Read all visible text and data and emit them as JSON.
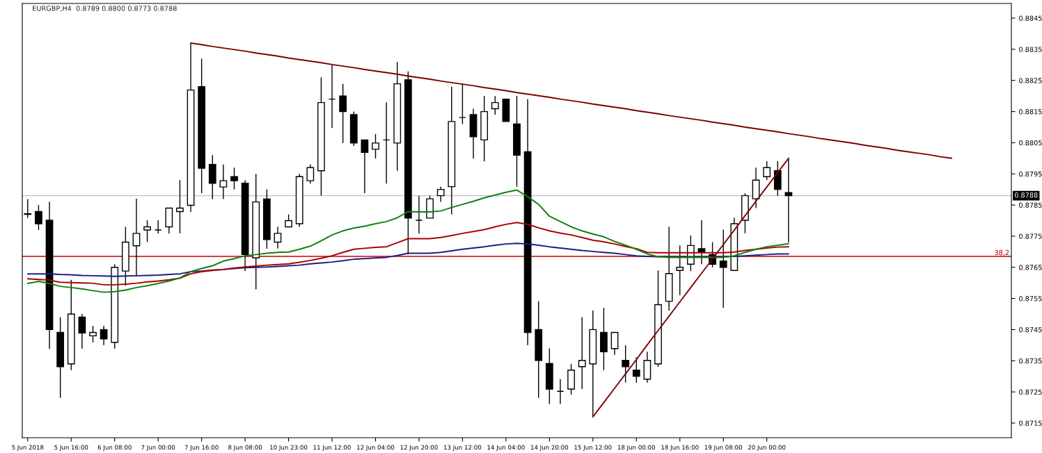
{
  "chart_data": {
    "type": "candlestick",
    "title": "EURGBP,H4  0.8789 0.8800 0.8773 0.8788",
    "categories": [
      "5 Jun 2018",
      null,
      null,
      null,
      "5 Jun 16:00",
      null,
      null,
      null,
      "6 Jun 08:00",
      null,
      null,
      null,
      "7 Jun 00:00",
      null,
      null,
      null,
      "7 Jun 16:00",
      null,
      null,
      null,
      "8 Jun 08:00",
      null,
      null,
      null,
      "10 Jun 23:00",
      null,
      null,
      null,
      "11 Jun 12:00",
      null,
      null,
      null,
      "12 Jun 04:00",
      null,
      null,
      null,
      "12 Jun 20:00",
      null,
      null,
      null,
      "13 Jun 12:00",
      null,
      null,
      null,
      "14 Jun 04:00",
      null,
      null,
      null,
      "14 Jun 20:00",
      null,
      null,
      null,
      "15 Jun 12:00",
      null,
      null,
      null,
      "18 Jun 00:00",
      null,
      null,
      null,
      "18 Jun 16:00",
      null,
      null,
      null,
      "19 Jun 08:00",
      null,
      null,
      null,
      "20 Jun 00:00",
      null,
      null,
      null,
      null,
      null,
      null,
      null,
      null,
      null,
      null,
      null,
      null,
      null,
      null,
      null,
      null,
      null,
      null,
      null,
      null,
      null,
      null
    ],
    "ohlc": [
      [
        0.87822,
        0.87869,
        0.87809,
        0.8782
      ],
      [
        0.87829,
        0.8785,
        0.8777,
        0.8779
      ],
      [
        0.87801,
        0.8786,
        0.87388,
        0.8745
      ],
      [
        0.87441,
        0.8749,
        0.87231,
        0.87331
      ],
      [
        0.8734,
        0.8761,
        0.8732,
        0.875
      ],
      [
        0.8749,
        0.875,
        0.87389,
        0.87439
      ],
      [
        0.8743,
        0.87462,
        0.87409,
        0.87441
      ],
      [
        0.8745,
        0.87462,
        0.874,
        0.8742
      ],
      [
        0.87409,
        0.8766,
        0.87389,
        0.8765
      ],
      [
        0.87638,
        0.8778,
        0.87591,
        0.87731
      ],
      [
        0.87719,
        0.8787,
        0.87621,
        0.87759
      ],
      [
        0.8777,
        0.87801,
        0.87731,
        0.8778
      ],
      [
        0.8777,
        0.87801,
        0.87759,
        0.8777
      ],
      [
        0.8778,
        0.8784,
        0.87759,
        0.8784
      ],
      [
        0.87829,
        0.8793,
        0.87759,
        0.8784
      ],
      [
        0.87849,
        0.8837,
        0.87828,
        0.88219
      ],
      [
        0.8823,
        0.8832,
        0.87888,
        0.87968
      ],
      [
        0.8798,
        0.8801,
        0.87869,
        0.8792
      ],
      [
        0.87908,
        0.8798,
        0.87869,
        0.87928
      ],
      [
        0.87941,
        0.8797,
        0.879,
        0.87928
      ],
      [
        0.8792,
        0.8793,
        0.87638,
        0.87691
      ],
      [
        0.8768,
        0.8795,
        0.87579,
        0.8786
      ],
      [
        0.87869,
        0.879,
        0.8771,
        0.87739
      ],
      [
        0.87731,
        0.8778,
        0.8771,
        0.87759
      ],
      [
        0.8778,
        0.8782,
        0.8778,
        0.878
      ],
      [
        0.8779,
        0.8795,
        0.8778,
        0.87941
      ],
      [
        0.87928,
        0.8798,
        0.87919,
        0.8797
      ],
      [
        0.8796,
        0.8826,
        0.8788,
        0.88179
      ],
      [
        0.8819,
        0.883,
        0.88097,
        0.8819
      ],
      [
        0.882,
        0.88239,
        0.88049,
        0.8815
      ],
      [
        0.8814,
        0.8815,
        0.8804,
        0.88049
      ],
      [
        0.88059,
        0.88059,
        0.87888,
        0.88019
      ],
      [
        0.88029,
        0.88078,
        0.87999,
        0.88049
      ],
      [
        0.88059,
        0.8818,
        0.87919,
        0.88059
      ],
      [
        0.88049,
        0.88309,
        0.8796,
        0.88239
      ],
      [
        0.88252,
        0.88279,
        0.87691,
        0.87808
      ],
      [
        0.87801,
        0.8788,
        0.87759,
        0.87801
      ],
      [
        0.87808,
        0.8788,
        0.87808,
        0.8787
      ],
      [
        0.8788,
        0.87909,
        0.8786,
        0.879
      ],
      [
        0.87909,
        0.8823,
        0.8782,
        0.88118
      ],
      [
        0.88131,
        0.88239,
        0.8811,
        0.88131
      ],
      [
        0.8814,
        0.88159,
        0.87999,
        0.88069
      ],
      [
        0.88059,
        0.882,
        0.8799,
        0.8815
      ],
      [
        0.88159,
        0.882,
        0.8814,
        0.88179
      ],
      [
        0.8819,
        0.8819,
        0.88118,
        0.88118
      ],
      [
        0.8811,
        0.882,
        0.87909,
        0.8801
      ],
      [
        0.88021,
        0.8819,
        0.874,
        0.87441
      ],
      [
        0.8745,
        0.87541,
        0.87231,
        0.87351
      ],
      [
        0.87341,
        0.8739,
        0.87211,
        0.87259
      ],
      [
        0.87252,
        0.87291,
        0.87211,
        0.87252
      ],
      [
        0.87259,
        0.8734,
        0.87241,
        0.8732
      ],
      [
        0.87331,
        0.8749,
        0.87259,
        0.87351
      ],
      [
        0.8734,
        0.87511,
        0.8717,
        0.8745
      ],
      [
        0.87441,
        0.8752,
        0.8732,
        0.87379
      ],
      [
        0.87389,
        0.87441,
        0.87369,
        0.87441
      ],
      [
        0.87351,
        0.874,
        0.8728,
        0.87331
      ],
      [
        0.8732,
        0.87361,
        0.8728,
        0.873
      ],
      [
        0.87291,
        0.87379,
        0.8728,
        0.87351
      ],
      [
        0.8734,
        0.8764,
        0.87331,
        0.8753
      ],
      [
        0.87541,
        0.8778,
        0.87511,
        0.8763
      ],
      [
        0.8764,
        0.8772,
        0.87561,
        0.8765
      ],
      [
        0.8766,
        0.87752,
        0.87638,
        0.8772
      ],
      [
        0.8771,
        0.87801,
        0.8766,
        0.87699
      ],
      [
        0.87691,
        0.87731,
        0.8765,
        0.8766
      ],
      [
        0.8767,
        0.87771,
        0.8752,
        0.8765
      ],
      [
        0.8764,
        0.87809,
        0.8764,
        0.8779
      ],
      [
        0.87801,
        0.87888,
        0.87759,
        0.8788
      ],
      [
        0.8787,
        0.8797,
        0.8784,
        0.8793
      ],
      [
        0.87941,
        0.87991,
        0.8793,
        0.8797
      ],
      [
        0.8796,
        0.87991,
        0.8788,
        0.879
      ],
      [
        0.8789,
        0.88,
        0.8773,
        0.8788
      ],
      null,
      null,
      null,
      null,
      null,
      null,
      null,
      null,
      null,
      null,
      null,
      null,
      null,
      null,
      null,
      null,
      null,
      null,
      null,
      null
    ],
    "series": [
      {
        "type": "line",
        "color": "#1c1c80",
        "values": [
          0.87629,
          0.87629,
          0.87629,
          0.87627,
          0.87626,
          0.87624,
          0.87623,
          0.87622,
          0.87621,
          0.87622,
          0.87623,
          0.87624,
          0.87625,
          0.87627,
          0.87629,
          0.87636,
          0.87638,
          0.87641,
          0.87643,
          0.87646,
          0.87649,
          0.8765,
          0.87651,
          0.87653,
          0.87655,
          0.87657,
          0.87661,
          0.87664,
          0.87667,
          0.87671,
          0.87676,
          0.87678,
          0.8768,
          0.87682,
          0.87688,
          0.87695,
          0.87695,
          0.87695,
          0.87698,
          0.87703,
          0.87708,
          0.87712,
          0.87716,
          0.87721,
          0.87725,
          0.87727,
          0.87725,
          0.87721,
          0.87716,
          0.87712,
          0.87708,
          0.87704,
          0.87701,
          0.87698,
          0.87695,
          0.87691,
          0.87687,
          0.87685,
          0.87684,
          0.87684,
          0.87684,
          0.87684,
          0.87684,
          0.87684,
          0.87684,
          0.87685,
          0.87687,
          0.87689,
          0.87691,
          0.87693,
          0.87693,
          null,
          null,
          null,
          null,
          null,
          null,
          null,
          null,
          null,
          null,
          null,
          null,
          null,
          null,
          null,
          null,
          null,
          null,
          null,
          null
        ]
      },
      {
        "type": "line",
        "color": "#a80000",
        "values": [
          0.87613,
          0.87611,
          0.87609,
          0.87602,
          0.87601,
          0.876,
          0.87599,
          0.87594,
          0.87594,
          0.87596,
          0.87599,
          0.87603,
          0.87606,
          0.8761,
          0.87615,
          0.87629,
          0.87636,
          0.8764,
          0.87643,
          0.87648,
          0.87651,
          0.87654,
          0.87657,
          0.87659,
          0.87661,
          0.87666,
          0.87672,
          0.87679,
          0.87687,
          0.87698,
          0.87708,
          0.87711,
          0.87714,
          0.87716,
          0.87729,
          0.87742,
          0.87742,
          0.87742,
          0.87746,
          0.87752,
          0.87759,
          0.87765,
          0.87771,
          0.8778,
          0.87788,
          0.87794,
          0.87788,
          0.87777,
          0.87767,
          0.8776,
          0.87754,
          0.87746,
          0.87737,
          0.87732,
          0.87725,
          0.87717,
          0.8771,
          0.87698,
          0.87697,
          0.87697,
          0.87697,
          0.87697,
          0.87697,
          0.87697,
          0.87697,
          0.87699,
          0.87704,
          0.87708,
          0.87712,
          0.87715,
          0.87716,
          null,
          null,
          null,
          null,
          null,
          null,
          null,
          null,
          null,
          null,
          null,
          null,
          null,
          null,
          null,
          null,
          null,
          null,
          null,
          null
        ]
      },
      {
        "type": "line",
        "color": "#118011",
        "values": [
          0.87598,
          0.87605,
          0.87598,
          0.87589,
          0.87585,
          0.87581,
          0.87575,
          0.8757,
          0.87572,
          0.87577,
          0.87585,
          0.87591,
          0.87598,
          0.87606,
          0.87616,
          0.87636,
          0.87646,
          0.87655,
          0.8767,
          0.87678,
          0.87687,
          0.87691,
          0.87695,
          0.87698,
          0.87699,
          0.87708,
          0.87718,
          0.87735,
          0.87754,
          0.87767,
          0.87776,
          0.87782,
          0.8779,
          0.87797,
          0.87809,
          0.87829,
          0.87828,
          0.87828,
          0.87831,
          0.87842,
          0.87852,
          0.87862,
          0.87873,
          0.87882,
          0.87891,
          0.87898,
          0.87877,
          0.87852,
          0.87814,
          0.87797,
          0.8778,
          0.87767,
          0.87757,
          0.87748,
          0.87733,
          0.87721,
          0.87708,
          0.87693,
          0.87684,
          0.87682,
          0.87682,
          0.87682,
          0.87682,
          0.87682,
          0.87682,
          0.87687,
          0.87698,
          0.87708,
          0.87716,
          0.87721,
          0.87726,
          null,
          null,
          null,
          null,
          null,
          null,
          null,
          null,
          null,
          null,
          null,
          null,
          null,
          null,
          null,
          null,
          null,
          null,
          null,
          null
        ]
      },
      {
        "type": "line",
        "color": "#7a0000",
        "values": [
          null,
          null,
          null,
          null,
          null,
          null,
          null,
          null,
          null,
          null,
          null,
          null,
          null,
          null,
          null,
          0.8837,
          0.88365,
          0.88359,
          0.88354,
          0.88349,
          0.88344,
          0.88338,
          0.88333,
          0.88328,
          0.88322,
          0.88317,
          0.88312,
          0.88307,
          0.88301,
          0.88296,
          0.88291,
          0.88285,
          0.8828,
          0.88275,
          0.8827,
          0.88264,
          0.88259,
          0.88254,
          0.88248,
          0.88243,
          0.88238,
          0.88233,
          0.88227,
          0.88222,
          0.88217,
          0.88211,
          0.88206,
          0.88201,
          0.88196,
          0.8819,
          0.88185,
          0.8818,
          0.88174,
          0.88169,
          0.88164,
          0.88159,
          0.88153,
          0.88148,
          0.88143,
          0.88137,
          0.88132,
          0.88127,
          0.88122,
          0.88116,
          0.88111,
          0.88106,
          0.881,
          0.88095,
          0.8809,
          0.88085,
          0.88079,
          0.88074,
          0.88069,
          0.88063,
          0.88058,
          0.88053,
          0.88048,
          0.88042,
          0.88037,
          0.88032,
          0.88026,
          0.88021,
          0.88016,
          0.88011,
          0.88005,
          0.88,
          null,
          null,
          null,
          null,
          null
        ]
      },
      {
        "type": "line",
        "color": "#800000",
        "values": [
          null,
          null,
          null,
          null,
          null,
          null,
          null,
          null,
          null,
          null,
          null,
          null,
          null,
          null,
          null,
          null,
          null,
          null,
          null,
          null,
          null,
          null,
          null,
          null,
          null,
          null,
          null,
          null,
          null,
          null,
          null,
          null,
          null,
          null,
          null,
          null,
          null,
          null,
          null,
          null,
          null,
          null,
          null,
          null,
          null,
          null,
          null,
          null,
          null,
          null,
          null,
          null,
          0.8717,
          0.87216,
          0.87262,
          0.87308,
          0.87354,
          0.87401,
          0.87447,
          0.87493,
          0.87539,
          0.87585,
          0.87631,
          0.87677,
          0.87723,
          0.87769,
          0.87816,
          0.87862,
          0.87908,
          0.87954,
          0.88,
          null,
          null,
          null,
          null,
          null,
          null,
          null,
          null,
          null,
          null,
          null,
          null,
          null,
          null,
          null,
          null,
          null,
          null,
          null,
          null
        ]
      }
    ],
    "ylim": [
      0.87103,
      0.88497
    ],
    "yticks": [
      {
        "value": 0.8715,
        "label": "0.8715"
      },
      {
        "value": 0.8725,
        "label": "0.8725"
      },
      {
        "value": 0.8735,
        "label": "0.8735"
      },
      {
        "value": 0.8745,
        "label": "0.8745"
      },
      {
        "value": 0.8755,
        "label": "0.8755"
      },
      {
        "value": 0.8765,
        "label": "0.8765"
      },
      {
        "value": 0.8775,
        "label": "0.8775"
      },
      {
        "value": 0.8785,
        "label": "0.8785"
      },
      {
        "value": 0.8795,
        "label": "0.8795"
      },
      {
        "value": 0.8805,
        "label": "0.8805"
      },
      {
        "value": 0.8815,
        "label": "0.8815"
      },
      {
        "value": 0.8825,
        "label": "0.8825"
      },
      {
        "value": 0.8835,
        "label": "0.8835"
      },
      {
        "value": 0.8845,
        "label": "0.8845"
      }
    ],
    "ref_lines": [
      {
        "axis": "y",
        "value": 0.8788,
        "label": "0.8788",
        "color": "#c0c0c0"
      },
      {
        "axis": "y",
        "value": 0.87685,
        "color": "#c00000"
      }
    ],
    "annotations": [
      {
        "text": "38,2",
        "y": 0.87685
      }
    ],
    "grid": false,
    "legend": false
  }
}
